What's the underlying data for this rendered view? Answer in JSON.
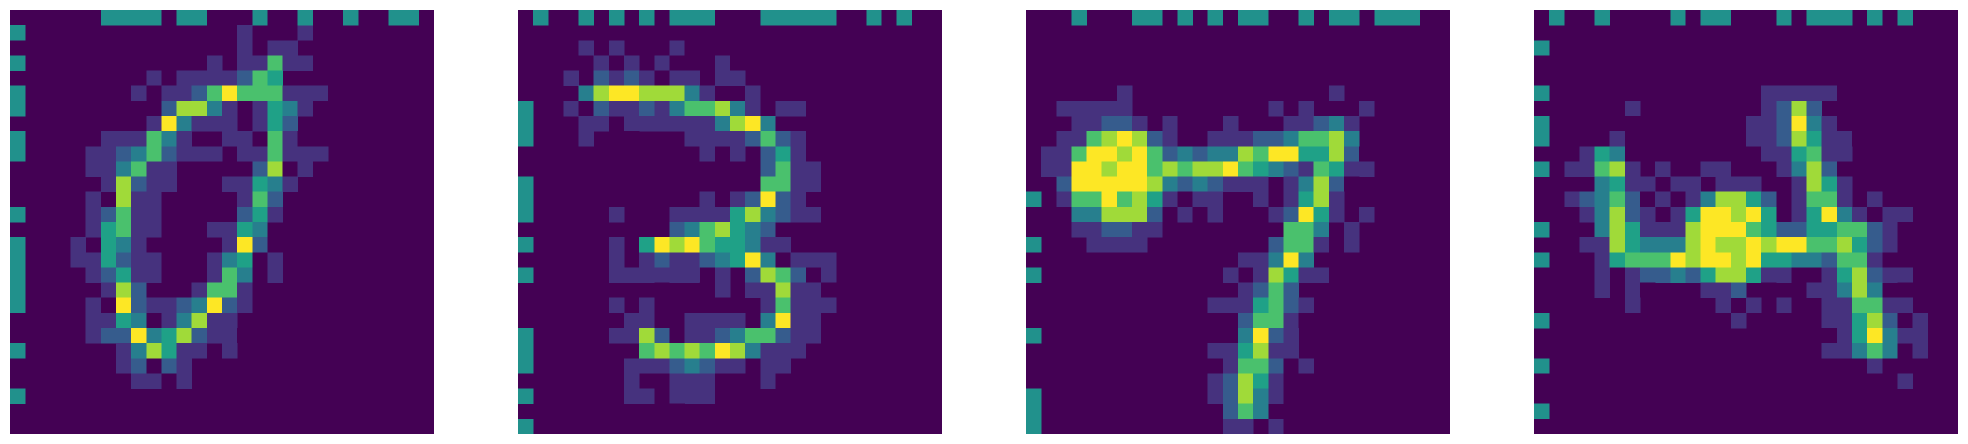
{
  "figure": {
    "palette": {
      "background": "#ffffff",
      "low": "#440154",
      "mid": "#21918c",
      "high": "#fde725",
      "scale": [
        "#440154",
        "#46327e",
        "#365c8d",
        "#277f8e",
        "#1fa187",
        "#4ac16d",
        "#a0da39",
        "#fde725"
      ]
    },
    "panels": [
      {
        "name": "digit-0",
        "grid_size": 28,
        "strokes": [
          [
            [
              8.0,
              21.0
            ],
            [
              6.8,
              16.0
            ],
            [
              7.8,
              11.0
            ],
            [
              11.0,
              7.0
            ],
            [
              14.0,
              5.5
            ],
            [
              16.5,
              5.0
            ],
            [
              18.0,
              6.5
            ],
            [
              17.5,
              10.0
            ],
            [
              16.0,
              14.5
            ],
            [
              14.5,
              18.0
            ],
            [
              12.0,
              21.0
            ],
            [
              9.5,
              22.5
            ],
            [
              8.0,
              21.0
            ]
          ],
          [
            [
              16.5,
              5.0
            ],
            [
              17.5,
              3.8
            ]
          ]
        ],
        "thickness": 0.9,
        "noise_seed": 7
      },
      {
        "name": "digit-3",
        "grid_size": 28,
        "strokes": [
          [
            [
              5.0,
              5.5
            ],
            [
              9.0,
              5.5
            ],
            [
              13.0,
              6.5
            ],
            [
              16.5,
              8.0
            ],
            [
              17.5,
              10.5
            ],
            [
              16.0,
              13.5
            ],
            [
              12.0,
              15.0
            ],
            [
              9.0,
              15.8
            ]
          ],
          [
            [
              11.0,
              15.5
            ],
            [
              15.0,
              16.0
            ],
            [
              17.5,
              18.0
            ],
            [
              17.5,
              20.5
            ],
            [
              15.5,
              22.0
            ],
            [
              12.0,
              22.8
            ],
            [
              9.0,
              22.5
            ],
            [
              8.5,
              21.5
            ]
          ]
        ],
        "thickness": 1.0,
        "noise_seed": 13
      },
      {
        "name": "digit-7",
        "grid_size": 28,
        "strokes": [
          [
            [
              4.0,
              10.5
            ],
            [
              8.0,
              10.5
            ],
            [
              12.0,
              10.5
            ],
            [
              16.5,
              9.5
            ],
            [
              20.5,
              8.5
            ]
          ],
          [
            [
              20.5,
              8.5
            ],
            [
              19.0,
              13.0
            ],
            [
              17.0,
              17.5
            ],
            [
              15.5,
              21.5
            ],
            [
              14.5,
              26.0
            ]
          ]
        ],
        "blobs": [
          [
            [
              6.0,
              11.0
            ],
            2.4
          ]
        ],
        "thickness": 1.5,
        "noise_seed": 29
      },
      {
        "name": "digit-4",
        "grid_size": 28,
        "strokes": [
          [
            [
              5.0,
              10.0
            ],
            [
              5.3,
              13.0
            ],
            [
              6.0,
              16.0
            ]
          ],
          [
            [
              6.0,
              16.0
            ],
            [
              10.0,
              16.5
            ],
            [
              14.0,
              16.0
            ],
            [
              18.0,
              15.5
            ],
            [
              21.5,
              15.0
            ]
          ],
          [
            [
              17.5,
              7.0
            ],
            [
              18.5,
              10.5
            ],
            [
              19.5,
              13.5
            ],
            [
              21.0,
              16.5
            ],
            [
              22.0,
              19.5
            ],
            [
              22.5,
              22.0
            ]
          ]
        ],
        "blobs": [
          [
            [
              13.0,
              15.0
            ],
            2.2
          ]
        ],
        "thickness": 1.5,
        "noise_seed": 41
      }
    ]
  }
}
